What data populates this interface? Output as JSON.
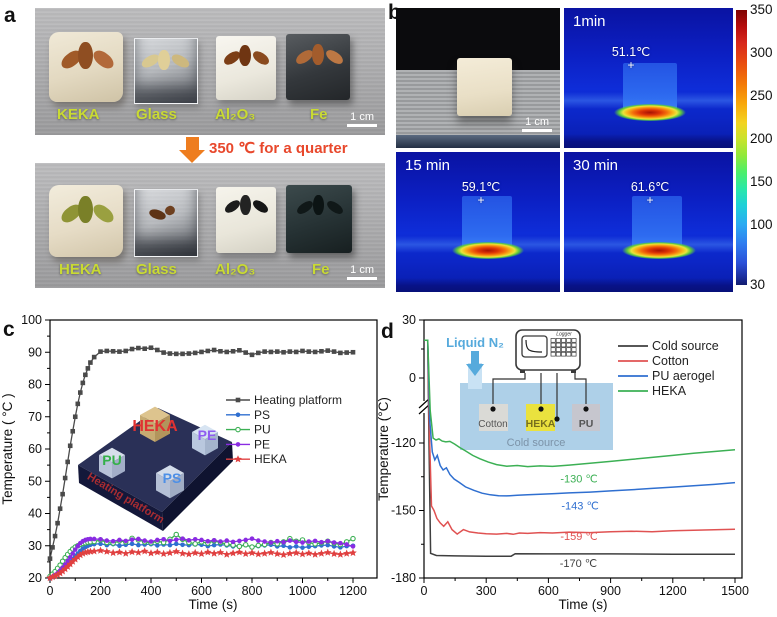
{
  "panel_a": {
    "letter": "a",
    "top": {
      "labels": [
        "KEKA",
        "Glass",
        "Al₂O₃",
        "Fe"
      ],
      "scale_bar": "1 cm"
    },
    "arrow_text": "350 ℃ for a quarter",
    "bottom": {
      "labels": [
        "HEKA",
        "Glass",
        "Al₂O₃",
        "Fe"
      ],
      "scale_bar": "1 cm"
    },
    "label_color": "#c9da33",
    "arrow_color": "#ee7d1f",
    "arrow_text_color": "#e8482c"
  },
  "panel_b": {
    "letter": "b",
    "photo": {
      "scale_bar": "1 cm"
    },
    "cross_marker": "+",
    "thermal": [
      {
        "time": "1min",
        "temp": "51.1℃"
      },
      {
        "time": "15 min",
        "temp": "59.1℃"
      },
      {
        "time": "30 min",
        "temp": "61.6℃"
      }
    ],
    "colorbar": {
      "labels": [
        350,
        300,
        250,
        200,
        150,
        100,
        30
      ],
      "min": 30,
      "max": 350
    }
  },
  "panel_c_letter": "c",
  "panel_d_letter": "d",
  "chart_data": [
    {
      "panel": "c",
      "type": "line",
      "xlabel": "Time (s)",
      "ylabel": "Temperature ( °C )",
      "xlim": [
        0,
        1295
      ],
      "ylim": [
        20,
        100
      ],
      "xticks": [
        0,
        200,
        400,
        600,
        800,
        1000,
        1200
      ],
      "yticks": [
        20,
        30,
        40,
        50,
        60,
        70,
        80,
        90,
        100
      ],
      "grid": false,
      "legend_position": "middle-right",
      "x": [
        0,
        10,
        20,
        30,
        40,
        50,
        60,
        70,
        80,
        90,
        100,
        110,
        120,
        130,
        140,
        150,
        160,
        175,
        200,
        225,
        250,
        275,
        300,
        325,
        350,
        375,
        400,
        425,
        450,
        475,
        500,
        525,
        550,
        575,
        600,
        625,
        650,
        675,
        700,
        725,
        750,
        775,
        800,
        825,
        850,
        875,
        900,
        925,
        950,
        975,
        1000,
        1025,
        1050,
        1075,
        1100,
        1125,
        1150,
        1175,
        1200
      ],
      "series": [
        {
          "name": "Heating platform",
          "color": "#4a4a4a",
          "marker": "square",
          "y": [
            26,
            29.5,
            33,
            37,
            41.5,
            46,
            51,
            56,
            61,
            65.5,
            70,
            74,
            77.5,
            80.5,
            83,
            85,
            86.8,
            88.5,
            90.2,
            90.4,
            90.3,
            90.2,
            90.4,
            91.0,
            91.3,
            91.1,
            91.4,
            90.7,
            89.9,
            89.6,
            89.5,
            89.5,
            89.6,
            89.8,
            90.1,
            90.4,
            90.7,
            90.3,
            90.1,
            90.3,
            90.6,
            89.9,
            89.2,
            89.8,
            90.2,
            90.1,
            90.2,
            90.0,
            90.2,
            90.1,
            90.4,
            90.2,
            90.1,
            90.3,
            90.5,
            90.2,
            89.8,
            89.9,
            90.0
          ]
        },
        {
          "name": "PS",
          "color": "#2f6fd0",
          "marker": "circle",
          "y": [
            20,
            20.3,
            20.7,
            21.2,
            21.8,
            22.5,
            23.3,
            24.1,
            25,
            25.9,
            26.8,
            27.6,
            28.4,
            29.1,
            29.6,
            30.0,
            30.3,
            30.5,
            30.6,
            30.2,
            30.5,
            30.0,
            30.3,
            30.6,
            30.2,
            30.4,
            30.5,
            30.1,
            30.4,
            30.2,
            30.6,
            30.3,
            30.2,
            30.4,
            30.3,
            29.9,
            30.2,
            30.4,
            30.1,
            29.8,
            30.0,
            30.2,
            29.6,
            29.9,
            30.1,
            30.3,
            29.8,
            30.0,
            29.5,
            29.8,
            29.4,
            29.7,
            29.9,
            30.1,
            30.2,
            29.8,
            29.5,
            29.9,
            30.0
          ]
        },
        {
          "name": "PU",
          "color": "#3cb054",
          "marker": "circle-open",
          "y": [
            20.5,
            21.2,
            22.0,
            23.0,
            24.0,
            25.2,
            26.3,
            27.3,
            28.2,
            29.0,
            29.6,
            30.0,
            30.4,
            30.7,
            30.9,
            31.1,
            31.2,
            31.3,
            31.8,
            31.0,
            30.8,
            31.5,
            31.2,
            32.3,
            31.8,
            31.2,
            30.9,
            31.4,
            31.0,
            32.0,
            33.5,
            32.0,
            31.0,
            30.6,
            31.2,
            30.8,
            31.5,
            31.0,
            30.5,
            30.2,
            29.8,
            30.3,
            29.6,
            30.1,
            30.4,
            31.0,
            30.6,
            31.2,
            32.2,
            31.4,
            31.8,
            31.0,
            30.6,
            30.9,
            31.4,
            30.8,
            30.4,
            31.2,
            32.2
          ]
        },
        {
          "name": "PE",
          "color": "#8a2be2",
          "marker": "circle",
          "y": [
            20,
            20.4,
            20.9,
            21.5,
            22.3,
            23.2,
            24.2,
            25.3,
            26.4,
            27.6,
            28.8,
            29.9,
            30.8,
            31.4,
            31.8,
            32.0,
            32.1,
            32.1,
            32.0,
            31.6,
            31.4,
            31.8,
            31.5,
            31.9,
            32.1,
            31.6,
            31.3,
            31.8,
            32.0,
            31.5,
            31.9,
            32.2,
            31.7,
            32.0,
            31.8,
            31.4,
            31.7,
            31.3,
            31.6,
            31.2,
            31.5,
            31.8,
            32.2,
            31.6,
            31.3,
            31.0,
            31.4,
            31.1,
            31.6,
            31.2,
            31.0,
            31.3,
            31.5,
            31.1,
            31.4,
            31.0,
            30.8,
            30.4,
            29.8
          ]
        },
        {
          "name": "HEKA",
          "color": "#e04040",
          "marker": "star",
          "y": [
            20,
            20.3,
            20.6,
            21.0,
            21.5,
            22.1,
            22.8,
            23.5,
            24.3,
            25.1,
            25.8,
            26.5,
            27.1,
            27.6,
            27.9,
            28.1,
            28.2,
            28.3,
            28.5,
            28.2,
            27.8,
            28.0,
            27.6,
            28.1,
            27.9,
            28.3,
            27.7,
            28.0,
            27.5,
            27.8,
            28.2,
            27.6,
            27.4,
            27.8,
            27.5,
            28.0,
            27.6,
            27.9,
            27.3,
            27.7,
            28.0,
            27.5,
            27.8,
            27.4,
            27.6,
            27.9,
            27.5,
            27.2,
            27.6,
            27.8,
            27.4,
            27.7,
            27.3,
            27.6,
            27.9,
            27.5,
            27.3,
            27.6,
            27.8
          ]
        }
      ],
      "inset": {
        "cube_labels": [
          {
            "text": "PU",
            "color": "#35b04a"
          },
          {
            "text": "HEKA",
            "color": "#e03232"
          },
          {
            "text": "PE",
            "color": "#8f5cf0"
          },
          {
            "text": "PS",
            "color": "#4d8fe6"
          }
        ],
        "platform_label": {
          "text": "Heating platform",
          "color": "#c23030"
        }
      }
    },
    {
      "panel": "d",
      "type": "line",
      "xlabel": "Time (s)",
      "ylabel": "Temperature (°C)",
      "xlim": [
        0,
        1535
      ],
      "xticks": [
        0,
        300,
        600,
        900,
        1200,
        1500
      ],
      "yticks": [
        30,
        0,
        -120,
        -150,
        -180
      ],
      "broken_axis_between": [
        0,
        -120
      ],
      "grid": false,
      "legend_position": "top-right",
      "series": [
        {
          "name": "Cold source",
          "color": "#3f3f3f",
          "t": [
            0,
            18,
            24,
            32,
            60,
            150,
            300,
            420,
            440,
            600,
            900,
            1200,
            1500
          ],
          "v": [
            19.5,
            19.5,
            -120,
            -169,
            -170,
            -170.2,
            -170.3,
            -170.3,
            -169.2,
            -169.3,
            -169.3,
            -169.4,
            -169.4
          ]
        },
        {
          "name": "Cotton",
          "color": "#e05252",
          "t": [
            0,
            18,
            26,
            36,
            48,
            62,
            78,
            95,
            115,
            135,
            160,
            190,
            220,
            260,
            300,
            350,
            400,
            430,
            460,
            500,
            560,
            620,
            700,
            800,
            900,
            1000,
            1100,
            1200,
            1300,
            1400,
            1500
          ],
          "v": [
            19.5,
            19.5,
            -100,
            -148,
            -150,
            -153.5,
            -155.5,
            -157,
            -155,
            -158.5,
            -160.5,
            -158.5,
            -159.5,
            -160,
            -160.3,
            -160.5,
            -160.2,
            -160.6,
            -160,
            -160.2,
            -159.8,
            -160,
            -159.6,
            -159.8,
            -159.4,
            -159.2,
            -159.4,
            -159,
            -158.8,
            -158.6,
            -158.3
          ]
        },
        {
          "name": "PU aerogel",
          "color": "#2f6fd0",
          "t": [
            0,
            18,
            28,
            40,
            52,
            64,
            78,
            92,
            108,
            125,
            145,
            170,
            200,
            240,
            280,
            320,
            360,
            400,
            450,
            500,
            560,
            630,
            700,
            800,
            900,
            1000,
            1100,
            1200,
            1300,
            1400,
            1500
          ],
          "v": [
            19.5,
            19.5,
            -80,
            -124,
            -127.5,
            -125.5,
            -130,
            -132,
            -131,
            -134,
            -136,
            -137.5,
            -139.5,
            -141,
            -142.3,
            -143,
            -143.4,
            -143.5,
            -143.2,
            -143,
            -142.8,
            -142.5,
            -142.2,
            -141.8,
            -141.3,
            -140.8,
            -140.2,
            -139.6,
            -139,
            -138.4,
            -137.6
          ]
        },
        {
          "name": "HEKA",
          "color": "#3cb054",
          "t": [
            0,
            18,
            30,
            44,
            58,
            72,
            88,
            105,
            125,
            148,
            172,
            200,
            235,
            270,
            310,
            350,
            400,
            450,
            500,
            560,
            620,
            700,
            800,
            900,
            1000,
            1100,
            1200,
            1300,
            1400,
            1500
          ],
          "v": [
            19.5,
            19.5,
            -60,
            -111,
            -114.5,
            -112.5,
            -116.5,
            -118,
            -117,
            -120.5,
            -122,
            -123.5,
            -125.5,
            -127,
            -128.5,
            -129.6,
            -130.3,
            -130,
            -130.5,
            -130.2,
            -130.4,
            -129.8,
            -129,
            -128.2,
            -127.3,
            -126.4,
            -125.5,
            -124.6,
            -123.8,
            -123
          ]
        }
      ],
      "annotations": [
        {
          "text": "-130 ℃",
          "color": "#3cb054",
          "t": 748,
          "v": -137.5
        },
        {
          "text": "-143 ℃",
          "color": "#2f6fd0",
          "t": 753,
          "v": -149.5
        },
        {
          "text": "-159 ℃",
          "color": "#e05252",
          "t": 748,
          "v": -163
        },
        {
          "text": "-170 ℃",
          "color": "#3f3f3f",
          "t": 745,
          "v": -175
        }
      ],
      "inset": {
        "liquid_label": "Liquid N₂",
        "liquid_color": "#56aadc",
        "logger_label": "Logger",
        "blocks": [
          {
            "text": "Cotton",
            "color": "#dadad6"
          },
          {
            "text": "HEKA",
            "color": "#eae23e"
          },
          {
            "text": "PU",
            "color": "#c6c6ce"
          }
        ],
        "cold_source_label": "Cold source",
        "cold_source_color": "#aed0e8"
      }
    }
  ]
}
